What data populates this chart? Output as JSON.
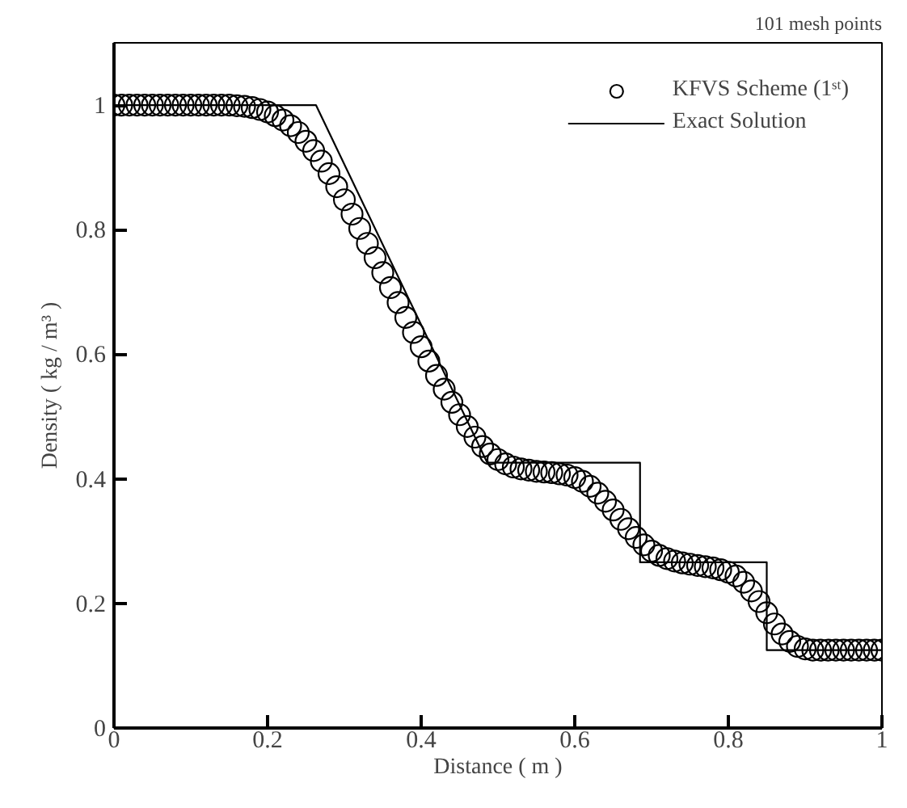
{
  "chart_data": {
    "type": "scatter",
    "xlabel": "Distance ( m )",
    "ylabel": "Density ( kg / m³ )",
    "annotations": [
      "101 mesh points"
    ],
    "xlim": [
      0,
      1
    ],
    "ylim": [
      0,
      1.1
    ],
    "xticks": [
      0,
      0.2,
      0.4,
      0.6,
      0.8,
      1
    ],
    "yticks": [
      0,
      0.2,
      0.4,
      0.6,
      0.8,
      1
    ],
    "grid": false,
    "legend": "top right",
    "series": [
      {
        "name": "KFVS Scheme (1ˢᵗ)",
        "marker": "circle",
        "color": "#000000",
        "x": [
          0,
          0.01,
          0.02,
          0.03,
          0.04,
          0.05,
          0.06,
          0.07,
          0.08,
          0.09,
          0.1,
          0.11,
          0.12,
          0.13,
          0.14,
          0.15,
          0.16,
          0.17,
          0.18,
          0.19,
          0.2,
          0.21,
          0.22,
          0.23,
          0.24,
          0.25,
          0.26,
          0.27,
          0.28,
          0.29,
          0.3,
          0.31,
          0.32,
          0.33,
          0.34,
          0.35,
          0.36,
          0.37,
          0.38,
          0.39,
          0.4,
          0.41,
          0.42,
          0.43,
          0.44,
          0.45,
          0.46,
          0.47,
          0.48,
          0.49,
          0.5,
          0.51,
          0.52,
          0.53,
          0.54,
          0.55,
          0.56,
          0.57,
          0.58,
          0.59,
          0.6,
          0.61,
          0.62,
          0.63,
          0.64,
          0.65,
          0.66,
          0.67,
          0.68,
          0.69,
          0.7,
          0.71,
          0.72,
          0.73,
          0.74,
          0.75,
          0.76,
          0.77,
          0.78,
          0.79,
          0.8,
          0.81,
          0.82,
          0.83,
          0.84,
          0.85,
          0.86,
          0.87,
          0.88,
          0.89,
          0.9,
          0.91,
          0.92,
          0.93,
          0.94,
          0.95,
          0.96,
          0.97,
          0.98,
          0.99,
          1
        ],
        "values": [
          1,
          1,
          1,
          1,
          1,
          1,
          1,
          1,
          1,
          1,
          1,
          1,
          1,
          1,
          1,
          1,
          0.999,
          0.998,
          0.996,
          0.993,
          0.989,
          0.983,
          0.976,
          0.967,
          0.956,
          0.942,
          0.927,
          0.91,
          0.89,
          0.869,
          0.848,
          0.825,
          0.802,
          0.778,
          0.755,
          0.731,
          0.707,
          0.683,
          0.659,
          0.635,
          0.612,
          0.589,
          0.566,
          0.544,
          0.523,
          0.503,
          0.484,
          0.467,
          0.452,
          0.44,
          0.431,
          0.424,
          0.419,
          0.416,
          0.414,
          0.412,
          0.411,
          0.41,
          0.408,
          0.406,
          0.402,
          0.396,
          0.388,
          0.377,
          0.364,
          0.35,
          0.335,
          0.32,
          0.306,
          0.294,
          0.284,
          0.277,
          0.272,
          0.268,
          0.265,
          0.263,
          0.261,
          0.259,
          0.257,
          0.254,
          0.25,
          0.244,
          0.234,
          0.22,
          0.203,
          0.185,
          0.167,
          0.151,
          0.139,
          0.131,
          0.127,
          0.125,
          0.125,
          0.125,
          0.125,
          0.125,
          0.125,
          0.125,
          0.125,
          0.125,
          0.125
        ]
      },
      {
        "name": "Exact Solution",
        "type": "line",
        "line_style": "solid",
        "color": "#000000",
        "x": [
          0,
          0.263,
          0.486,
          0.685,
          0.685,
          0.85,
          0.85,
          1
        ],
        "values": [
          1,
          1,
          0.426,
          0.426,
          0.266,
          0.266,
          0.125,
          0.125
        ]
      }
    ]
  }
}
